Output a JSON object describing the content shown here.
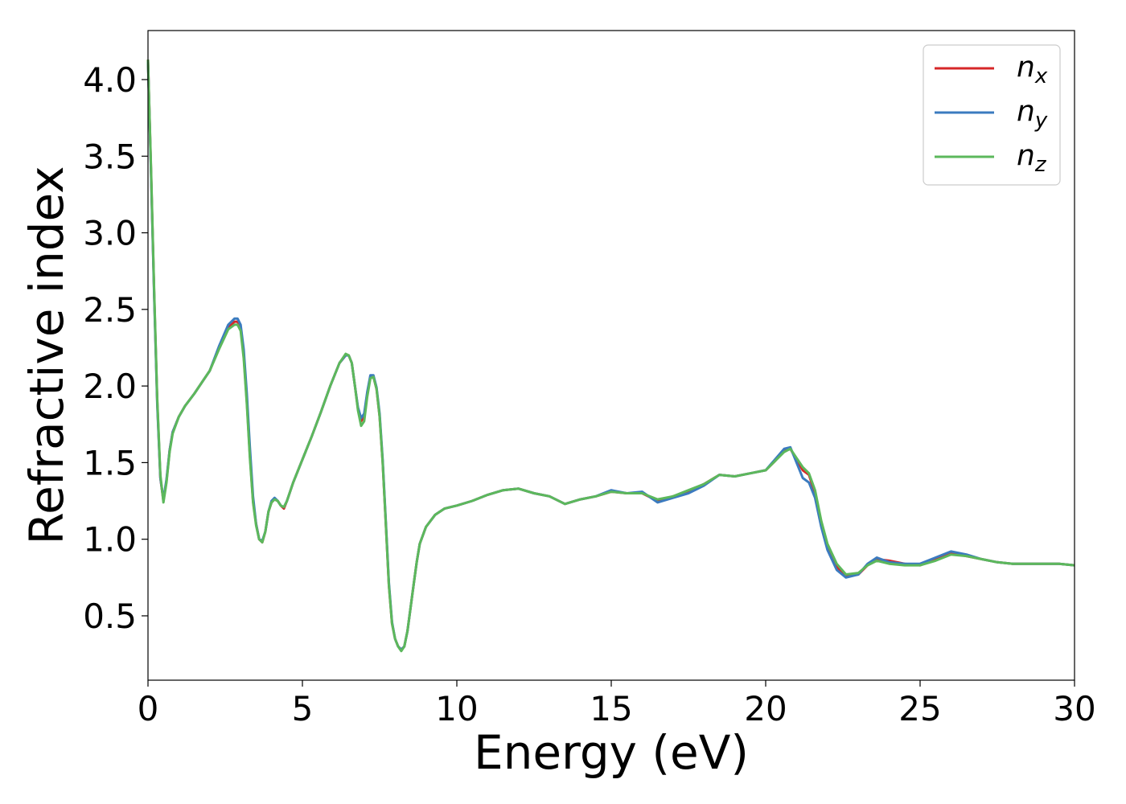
{
  "chart_data": {
    "type": "line",
    "xlabel": "Energy (eV)",
    "ylabel": "Refractive index",
    "xlim": [
      0,
      30
    ],
    "ylim": [
      0.08,
      4.32
    ],
    "xticks": [
      "0",
      "5",
      "10",
      "15",
      "20",
      "25",
      "30"
    ],
    "yticks": [
      "0.5",
      "1.0",
      "1.5",
      "2.0",
      "2.5",
      "3.0",
      "3.5",
      "4.0"
    ],
    "grid": false,
    "legend_position": "top-right",
    "series": [
      {
        "name": "n",
        "subscript": "x",
        "color": "#d62728",
        "x": [
          0.0,
          0.1,
          0.2,
          0.3,
          0.4,
          0.5,
          0.6,
          0.7,
          0.8,
          1.0,
          1.2,
          1.5,
          2.0,
          2.3,
          2.6,
          2.8,
          2.9,
          3.0,
          3.1,
          3.2,
          3.3,
          3.4,
          3.5,
          3.6,
          3.7,
          3.8,
          3.9,
          4.0,
          4.1,
          4.2,
          4.3,
          4.4,
          4.5,
          4.7,
          5.0,
          5.3,
          5.6,
          5.9,
          6.2,
          6.4,
          6.5,
          6.6,
          6.7,
          6.8,
          6.9,
          7.0,
          7.1,
          7.2,
          7.3,
          7.4,
          7.5,
          7.6,
          7.7,
          7.8,
          7.9,
          8.0,
          8.1,
          8.2,
          8.3,
          8.4,
          8.5,
          8.6,
          8.7,
          8.8,
          9.0,
          9.3,
          9.6,
          10.0,
          10.5,
          11.0,
          11.5,
          12.0,
          12.5,
          13.0,
          13.5,
          14.0,
          14.5,
          15.0,
          15.5,
          16.0,
          16.5,
          17.0,
          17.5,
          18.0,
          18.5,
          19.0,
          19.5,
          20.0,
          20.3,
          20.6,
          20.8,
          21.0,
          21.2,
          21.4,
          21.6,
          21.8,
          22.0,
          22.3,
          22.6,
          23.0,
          23.3,
          23.6,
          24.0,
          24.5,
          25.0,
          25.5,
          26.0,
          26.5,
          27.0,
          27.5,
          28.0,
          28.5,
          29.0,
          29.5,
          30.0
        ],
        "values": [
          4.13,
          3.4,
          2.6,
          1.9,
          1.4,
          1.25,
          1.38,
          1.58,
          1.7,
          1.8,
          1.87,
          1.95,
          2.1,
          2.25,
          2.38,
          2.42,
          2.42,
          2.38,
          2.2,
          1.9,
          1.55,
          1.25,
          1.1,
          1.0,
          0.98,
          1.05,
          1.18,
          1.24,
          1.26,
          1.25,
          1.22,
          1.2,
          1.25,
          1.37,
          1.52,
          1.67,
          1.83,
          2.0,
          2.15,
          2.2,
          2.2,
          2.15,
          2.0,
          1.85,
          1.77,
          1.8,
          1.95,
          2.06,
          2.06,
          1.98,
          1.8,
          1.5,
          1.1,
          0.7,
          0.45,
          0.35,
          0.3,
          0.28,
          0.3,
          0.4,
          0.55,
          0.7,
          0.85,
          0.97,
          1.08,
          1.16,
          1.2,
          1.22,
          1.25,
          1.29,
          1.32,
          1.33,
          1.3,
          1.28,
          1.23,
          1.26,
          1.28,
          1.31,
          1.3,
          1.3,
          1.25,
          1.28,
          1.31,
          1.36,
          1.42,
          1.41,
          1.43,
          1.45,
          1.51,
          1.58,
          1.59,
          1.52,
          1.45,
          1.42,
          1.3,
          1.1,
          0.95,
          0.82,
          0.76,
          0.77,
          0.83,
          0.87,
          0.86,
          0.84,
          0.83,
          0.87,
          0.91,
          0.89,
          0.87,
          0.85,
          0.84,
          0.84,
          0.84,
          0.84,
          0.83
        ]
      },
      {
        "name": "n",
        "subscript": "y",
        "color": "#3b7bbf",
        "x": [
          0.0,
          0.1,
          0.2,
          0.3,
          0.4,
          0.5,
          0.6,
          0.7,
          0.8,
          1.0,
          1.2,
          1.5,
          2.0,
          2.3,
          2.6,
          2.8,
          2.9,
          3.0,
          3.1,
          3.2,
          3.3,
          3.4,
          3.5,
          3.6,
          3.7,
          3.8,
          3.9,
          4.0,
          4.1,
          4.2,
          4.3,
          4.4,
          4.5,
          4.7,
          5.0,
          5.3,
          5.6,
          5.9,
          6.2,
          6.4,
          6.5,
          6.6,
          6.7,
          6.8,
          6.9,
          7.0,
          7.1,
          7.2,
          7.3,
          7.4,
          7.5,
          7.6,
          7.7,
          7.8,
          7.9,
          8.0,
          8.1,
          8.2,
          8.3,
          8.4,
          8.5,
          8.6,
          8.7,
          8.8,
          9.0,
          9.3,
          9.6,
          10.0,
          10.5,
          11.0,
          11.5,
          12.0,
          12.5,
          13.0,
          13.5,
          14.0,
          14.5,
          15.0,
          15.5,
          16.0,
          16.5,
          17.0,
          17.5,
          18.0,
          18.5,
          19.0,
          19.5,
          20.0,
          20.3,
          20.6,
          20.8,
          21.0,
          21.2,
          21.4,
          21.6,
          21.8,
          22.0,
          22.3,
          22.6,
          23.0,
          23.3,
          23.6,
          24.0,
          24.5,
          25.0,
          25.5,
          26.0,
          26.5,
          27.0,
          27.5,
          28.0,
          28.5,
          29.0,
          29.5,
          30.0
        ],
        "values": [
          4.12,
          3.38,
          2.58,
          1.88,
          1.4,
          1.26,
          1.39,
          1.58,
          1.7,
          1.8,
          1.87,
          1.95,
          2.1,
          2.26,
          2.4,
          2.44,
          2.44,
          2.4,
          2.24,
          1.95,
          1.6,
          1.28,
          1.1,
          1.0,
          0.99,
          1.05,
          1.18,
          1.25,
          1.27,
          1.25,
          1.22,
          1.21,
          1.25,
          1.37,
          1.52,
          1.67,
          1.83,
          2.0,
          2.15,
          2.2,
          2.2,
          2.15,
          2.0,
          1.86,
          1.79,
          1.82,
          1.96,
          2.07,
          2.07,
          1.99,
          1.82,
          1.52,
          1.12,
          0.72,
          0.46,
          0.35,
          0.3,
          0.28,
          0.3,
          0.4,
          0.55,
          0.7,
          0.85,
          0.97,
          1.08,
          1.16,
          1.2,
          1.22,
          1.25,
          1.29,
          1.32,
          1.33,
          1.3,
          1.28,
          1.23,
          1.26,
          1.28,
          1.32,
          1.3,
          1.31,
          1.24,
          1.27,
          1.3,
          1.35,
          1.42,
          1.41,
          1.43,
          1.45,
          1.52,
          1.59,
          1.6,
          1.5,
          1.4,
          1.37,
          1.27,
          1.08,
          0.93,
          0.8,
          0.75,
          0.77,
          0.84,
          0.88,
          0.85,
          0.84,
          0.84,
          0.88,
          0.92,
          0.9,
          0.87,
          0.85,
          0.84,
          0.84,
          0.84,
          0.84,
          0.83
        ]
      },
      {
        "name": "n",
        "subscript": "z",
        "color": "#5cb85c",
        "x": [
          0.0,
          0.1,
          0.2,
          0.3,
          0.4,
          0.5,
          0.6,
          0.7,
          0.8,
          1.0,
          1.2,
          1.5,
          2.0,
          2.3,
          2.6,
          2.8,
          2.9,
          3.0,
          3.1,
          3.2,
          3.3,
          3.4,
          3.5,
          3.6,
          3.7,
          3.8,
          3.9,
          4.0,
          4.1,
          4.2,
          4.3,
          4.4,
          4.5,
          4.7,
          5.0,
          5.3,
          5.6,
          5.9,
          6.2,
          6.4,
          6.5,
          6.6,
          6.7,
          6.8,
          6.9,
          7.0,
          7.1,
          7.2,
          7.3,
          7.4,
          7.5,
          7.6,
          7.7,
          7.8,
          7.9,
          8.0,
          8.1,
          8.2,
          8.3,
          8.4,
          8.5,
          8.6,
          8.7,
          8.8,
          9.0,
          9.3,
          9.6,
          10.0,
          10.5,
          11.0,
          11.5,
          12.0,
          12.5,
          13.0,
          13.5,
          14.0,
          14.5,
          15.0,
          15.5,
          16.0,
          16.5,
          17.0,
          17.5,
          18.0,
          18.5,
          19.0,
          19.5,
          20.0,
          20.3,
          20.6,
          20.8,
          21.0,
          21.2,
          21.4,
          21.6,
          21.8,
          22.0,
          22.3,
          22.6,
          23.0,
          23.3,
          23.6,
          24.0,
          24.5,
          25.0,
          25.5,
          26.0,
          26.5,
          27.0,
          27.5,
          28.0,
          28.5,
          29.0,
          29.5,
          30.0
        ],
        "values": [
          4.13,
          3.42,
          2.62,
          1.92,
          1.42,
          1.24,
          1.37,
          1.57,
          1.69,
          1.8,
          1.87,
          1.95,
          2.1,
          2.24,
          2.37,
          2.4,
          2.4,
          2.36,
          2.18,
          1.88,
          1.53,
          1.24,
          1.09,
          1.0,
          0.98,
          1.05,
          1.18,
          1.24,
          1.26,
          1.25,
          1.22,
          1.21,
          1.25,
          1.37,
          1.52,
          1.67,
          1.83,
          2.0,
          2.15,
          2.21,
          2.2,
          2.15,
          2.0,
          1.84,
          1.74,
          1.77,
          1.93,
          2.05,
          2.06,
          1.98,
          1.8,
          1.5,
          1.1,
          0.7,
          0.45,
          0.35,
          0.3,
          0.27,
          0.3,
          0.4,
          0.55,
          0.7,
          0.85,
          0.97,
          1.08,
          1.16,
          1.2,
          1.22,
          1.25,
          1.29,
          1.32,
          1.33,
          1.3,
          1.28,
          1.23,
          1.26,
          1.28,
          1.31,
          1.3,
          1.3,
          1.26,
          1.28,
          1.32,
          1.36,
          1.42,
          1.41,
          1.43,
          1.45,
          1.51,
          1.57,
          1.59,
          1.53,
          1.47,
          1.43,
          1.32,
          1.12,
          0.97,
          0.84,
          0.77,
          0.78,
          0.83,
          0.86,
          0.84,
          0.83,
          0.83,
          0.86,
          0.9,
          0.89,
          0.87,
          0.85,
          0.84,
          0.84,
          0.84,
          0.84,
          0.83
        ]
      }
    ]
  }
}
